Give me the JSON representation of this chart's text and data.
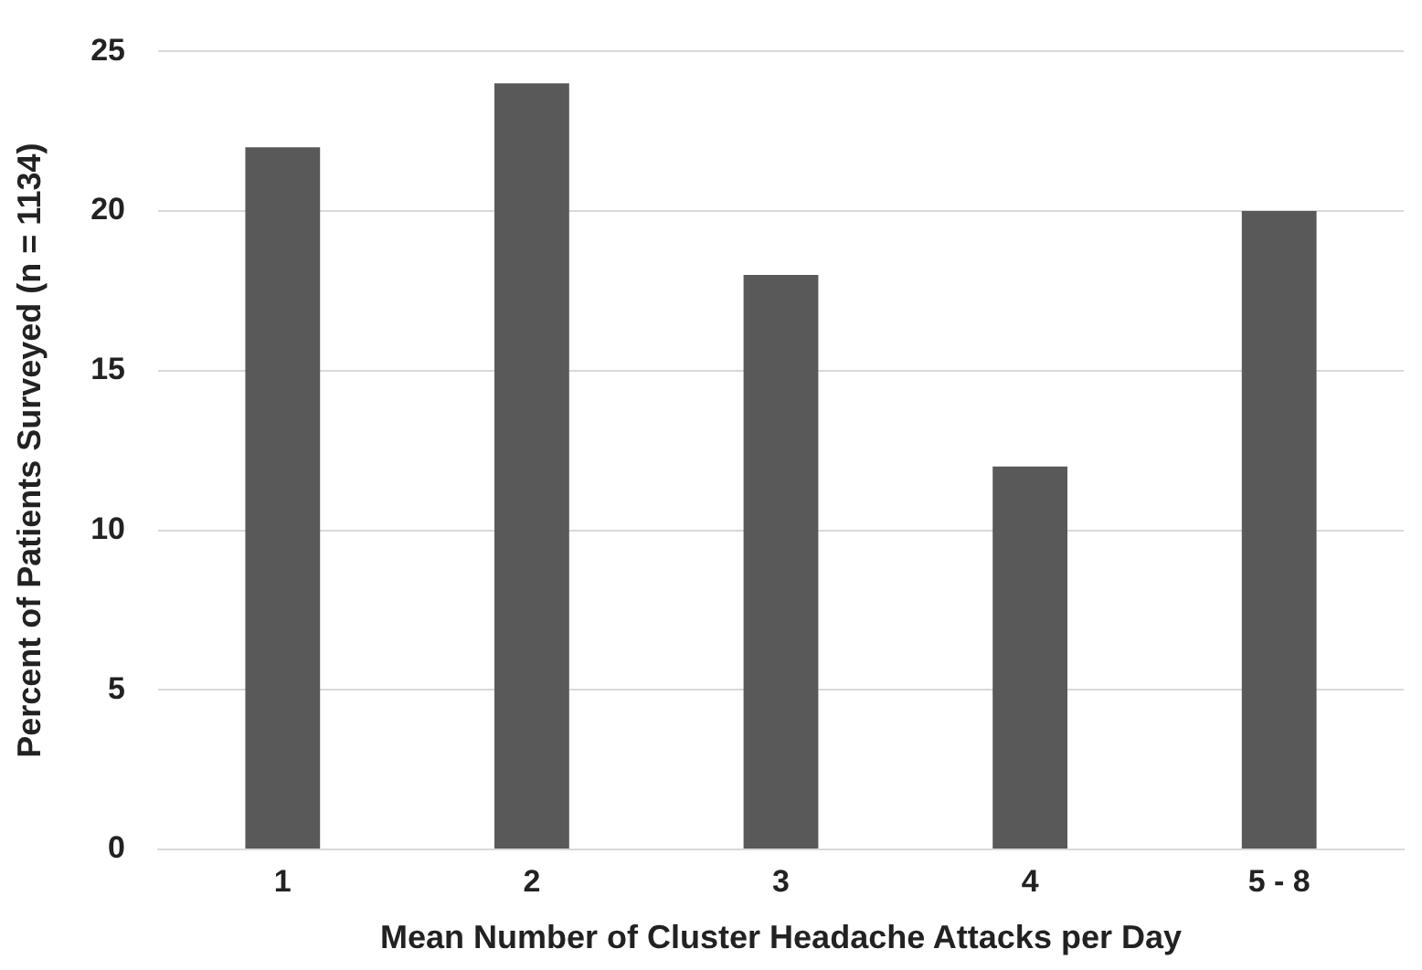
{
  "chart_data": {
    "type": "bar",
    "xlabel": "Mean Number of Cluster Headache Attacks per Day",
    "ylabel": "Percent of Patients Surveyed (n = 1134)",
    "categories": [
      "1",
      "2",
      "3",
      "4",
      "5 - 8"
    ],
    "values": [
      22,
      24,
      18,
      12,
      20
    ],
    "color": "#595959",
    "ylim": [
      0,
      25
    ],
    "yticks": [
      0,
      5,
      10,
      15,
      20,
      25
    ],
    "grid": "y",
    "legend": false
  }
}
